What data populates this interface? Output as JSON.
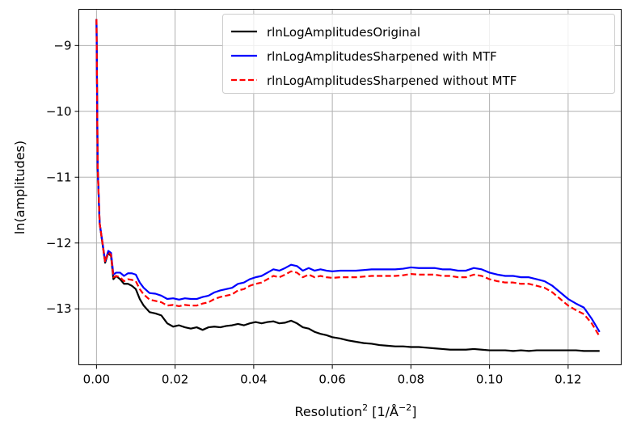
{
  "chart_data": {
    "type": "line",
    "xlabel_main": "Resolution",
    "xlabel_sup1": "2",
    "xlabel_mid": " [1/Å",
    "xlabel_sup2": "−2",
    "xlabel_end": "]",
    "ylabel": "ln(amplitudes)",
    "xlim": [
      -0.0045,
      0.1335
    ],
    "ylim": [
      -13.85,
      -8.45
    ],
    "grid": true,
    "legend_position": "top-right",
    "x_ticks": [
      {
        "value": 0.0,
        "label": "0.00"
      },
      {
        "value": 0.02,
        "label": "0.02"
      },
      {
        "value": 0.04,
        "label": "0.04"
      },
      {
        "value": 0.06,
        "label": "0.06"
      },
      {
        "value": 0.08,
        "label": "0.08"
      },
      {
        "value": 0.1,
        "label": "0.10"
      },
      {
        "value": 0.12,
        "label": "0.12"
      }
    ],
    "y_ticks": [
      {
        "value": -9,
        "label": "−9"
      },
      {
        "value": -10,
        "label": "−10"
      },
      {
        "value": -11,
        "label": "−11"
      },
      {
        "value": -12,
        "label": "−12"
      },
      {
        "value": -13,
        "label": "−13"
      }
    ],
    "series": [
      {
        "name": "rlnLogAmplitudesOriginal",
        "color": "#000000",
        "dash": "solid",
        "points": [
          [
            0.0,
            -8.6
          ],
          [
            0.0003,
            -10.85
          ],
          [
            0.0008,
            -11.7
          ],
          [
            0.0015,
            -12.0
          ],
          [
            0.0022,
            -12.3
          ],
          [
            0.003,
            -12.15
          ],
          [
            0.0037,
            -12.2
          ],
          [
            0.0043,
            -12.55
          ],
          [
            0.005,
            -12.5
          ],
          [
            0.006,
            -12.55
          ],
          [
            0.007,
            -12.62
          ],
          [
            0.008,
            -12.62
          ],
          [
            0.009,
            -12.65
          ],
          [
            0.01,
            -12.7
          ],
          [
            0.011,
            -12.85
          ],
          [
            0.012,
            -12.95
          ],
          [
            0.0135,
            -13.05
          ],
          [
            0.015,
            -13.07
          ],
          [
            0.0165,
            -13.1
          ],
          [
            0.018,
            -13.22
          ],
          [
            0.0195,
            -13.27
          ],
          [
            0.021,
            -13.25
          ],
          [
            0.0225,
            -13.28
          ],
          [
            0.024,
            -13.3
          ],
          [
            0.0255,
            -13.28
          ],
          [
            0.027,
            -13.32
          ],
          [
            0.0285,
            -13.28
          ],
          [
            0.03,
            -13.27
          ],
          [
            0.0315,
            -13.28
          ],
          [
            0.033,
            -13.26
          ],
          [
            0.0345,
            -13.25
          ],
          [
            0.036,
            -13.23
          ],
          [
            0.0375,
            -13.25
          ],
          [
            0.039,
            -13.22
          ],
          [
            0.0405,
            -13.2
          ],
          [
            0.042,
            -13.22
          ],
          [
            0.0435,
            -13.2
          ],
          [
            0.045,
            -13.19
          ],
          [
            0.0465,
            -13.22
          ],
          [
            0.048,
            -13.21
          ],
          [
            0.0495,
            -13.18
          ],
          [
            0.051,
            -13.22
          ],
          [
            0.0525,
            -13.28
          ],
          [
            0.054,
            -13.3
          ],
          [
            0.0555,
            -13.35
          ],
          [
            0.057,
            -13.38
          ],
          [
            0.0585,
            -13.4
          ],
          [
            0.06,
            -13.43
          ],
          [
            0.062,
            -13.45
          ],
          [
            0.064,
            -13.48
          ],
          [
            0.066,
            -13.5
          ],
          [
            0.068,
            -13.52
          ],
          [
            0.07,
            -13.53
          ],
          [
            0.072,
            -13.55
          ],
          [
            0.074,
            -13.56
          ],
          [
            0.076,
            -13.57
          ],
          [
            0.078,
            -13.57
          ],
          [
            0.08,
            -13.58
          ],
          [
            0.082,
            -13.58
          ],
          [
            0.084,
            -13.59
          ],
          [
            0.086,
            -13.6
          ],
          [
            0.088,
            -13.61
          ],
          [
            0.09,
            -13.62
          ],
          [
            0.092,
            -13.62
          ],
          [
            0.094,
            -13.62
          ],
          [
            0.096,
            -13.61
          ],
          [
            0.098,
            -13.62
          ],
          [
            0.1,
            -13.63
          ],
          [
            0.102,
            -13.63
          ],
          [
            0.104,
            -13.63
          ],
          [
            0.106,
            -13.64
          ],
          [
            0.108,
            -13.63
          ],
          [
            0.11,
            -13.64
          ],
          [
            0.112,
            -13.63
          ],
          [
            0.114,
            -13.63
          ],
          [
            0.116,
            -13.63
          ],
          [
            0.118,
            -13.63
          ],
          [
            0.12,
            -13.63
          ],
          [
            0.122,
            -13.63
          ],
          [
            0.124,
            -13.64
          ],
          [
            0.126,
            -13.64
          ],
          [
            0.128,
            -13.64
          ]
        ]
      },
      {
        "name": "rlnLogAmplitudesSharpened with MTF",
        "color": "#0000ff",
        "dash": "solid",
        "points": [
          [
            0.0,
            -8.6
          ],
          [
            0.0003,
            -10.85
          ],
          [
            0.0008,
            -11.7
          ],
          [
            0.0015,
            -11.98
          ],
          [
            0.0022,
            -12.28
          ],
          [
            0.003,
            -12.12
          ],
          [
            0.0037,
            -12.15
          ],
          [
            0.0043,
            -12.48
          ],
          [
            0.005,
            -12.45
          ],
          [
            0.006,
            -12.45
          ],
          [
            0.007,
            -12.5
          ],
          [
            0.008,
            -12.46
          ],
          [
            0.009,
            -12.46
          ],
          [
            0.01,
            -12.48
          ],
          [
            0.011,
            -12.6
          ],
          [
            0.012,
            -12.68
          ],
          [
            0.0135,
            -12.76
          ],
          [
            0.015,
            -12.77
          ],
          [
            0.0165,
            -12.8
          ],
          [
            0.018,
            -12.85
          ],
          [
            0.0195,
            -12.84
          ],
          [
            0.021,
            -12.86
          ],
          [
            0.0225,
            -12.84
          ],
          [
            0.024,
            -12.85
          ],
          [
            0.0255,
            -12.85
          ],
          [
            0.027,
            -12.82
          ],
          [
            0.0285,
            -12.8
          ],
          [
            0.03,
            -12.75
          ],
          [
            0.0315,
            -12.72
          ],
          [
            0.033,
            -12.7
          ],
          [
            0.0345,
            -12.68
          ],
          [
            0.036,
            -12.62
          ],
          [
            0.0375,
            -12.6
          ],
          [
            0.039,
            -12.55
          ],
          [
            0.0405,
            -12.52
          ],
          [
            0.042,
            -12.5
          ],
          [
            0.0435,
            -12.45
          ],
          [
            0.045,
            -12.4
          ],
          [
            0.0465,
            -12.42
          ],
          [
            0.048,
            -12.38
          ],
          [
            0.0495,
            -12.33
          ],
          [
            0.051,
            -12.35
          ],
          [
            0.0525,
            -12.42
          ],
          [
            0.054,
            -12.38
          ],
          [
            0.0555,
            -12.42
          ],
          [
            0.057,
            -12.4
          ],
          [
            0.0585,
            -12.42
          ],
          [
            0.06,
            -12.43
          ],
          [
            0.062,
            -12.42
          ],
          [
            0.064,
            -12.42
          ],
          [
            0.066,
            -12.42
          ],
          [
            0.068,
            -12.41
          ],
          [
            0.07,
            -12.4
          ],
          [
            0.072,
            -12.4
          ],
          [
            0.074,
            -12.4
          ],
          [
            0.076,
            -12.4
          ],
          [
            0.078,
            -12.39
          ],
          [
            0.08,
            -12.37
          ],
          [
            0.082,
            -12.38
          ],
          [
            0.084,
            -12.38
          ],
          [
            0.086,
            -12.38
          ],
          [
            0.088,
            -12.4
          ],
          [
            0.09,
            -12.4
          ],
          [
            0.092,
            -12.42
          ],
          [
            0.094,
            -12.42
          ],
          [
            0.096,
            -12.38
          ],
          [
            0.098,
            -12.4
          ],
          [
            0.1,
            -12.45
          ],
          [
            0.102,
            -12.48
          ],
          [
            0.104,
            -12.5
          ],
          [
            0.106,
            -12.5
          ],
          [
            0.108,
            -12.52
          ],
          [
            0.11,
            -12.52
          ],
          [
            0.112,
            -12.55
          ],
          [
            0.114,
            -12.58
          ],
          [
            0.116,
            -12.65
          ],
          [
            0.118,
            -12.75
          ],
          [
            0.12,
            -12.85
          ],
          [
            0.122,
            -12.92
          ],
          [
            0.124,
            -12.98
          ],
          [
            0.126,
            -13.15
          ],
          [
            0.128,
            -13.35
          ]
        ]
      },
      {
        "name": "rlnLogAmplitudesSharpened without MTF",
        "color": "#ff0000",
        "dash": "dashed",
        "points": [
          [
            0.0,
            -8.6
          ],
          [
            0.0003,
            -10.85
          ],
          [
            0.0008,
            -11.7
          ],
          [
            0.0015,
            -11.99
          ],
          [
            0.0022,
            -12.29
          ],
          [
            0.003,
            -12.14
          ],
          [
            0.0037,
            -12.18
          ],
          [
            0.0043,
            -12.52
          ],
          [
            0.005,
            -12.5
          ],
          [
            0.006,
            -12.52
          ],
          [
            0.007,
            -12.58
          ],
          [
            0.008,
            -12.55
          ],
          [
            0.009,
            -12.56
          ],
          [
            0.01,
            -12.58
          ],
          [
            0.011,
            -12.7
          ],
          [
            0.012,
            -12.78
          ],
          [
            0.0135,
            -12.86
          ],
          [
            0.015,
            -12.88
          ],
          [
            0.0165,
            -12.9
          ],
          [
            0.018,
            -12.95
          ],
          [
            0.0195,
            -12.94
          ],
          [
            0.021,
            -12.96
          ],
          [
            0.0225,
            -12.94
          ],
          [
            0.024,
            -12.95
          ],
          [
            0.0255,
            -12.95
          ],
          [
            0.027,
            -12.92
          ],
          [
            0.0285,
            -12.9
          ],
          [
            0.03,
            -12.85
          ],
          [
            0.0315,
            -12.82
          ],
          [
            0.033,
            -12.8
          ],
          [
            0.0345,
            -12.78
          ],
          [
            0.036,
            -12.72
          ],
          [
            0.0375,
            -12.7
          ],
          [
            0.039,
            -12.65
          ],
          [
            0.0405,
            -12.62
          ],
          [
            0.042,
            -12.6
          ],
          [
            0.0435,
            -12.55
          ],
          [
            0.045,
            -12.5
          ],
          [
            0.0465,
            -12.52
          ],
          [
            0.048,
            -12.48
          ],
          [
            0.0495,
            -12.43
          ],
          [
            0.051,
            -12.45
          ],
          [
            0.0525,
            -12.52
          ],
          [
            0.054,
            -12.48
          ],
          [
            0.0555,
            -12.52
          ],
          [
            0.057,
            -12.5
          ],
          [
            0.0585,
            -12.52
          ],
          [
            0.06,
            -12.53
          ],
          [
            0.062,
            -12.52
          ],
          [
            0.064,
            -12.52
          ],
          [
            0.066,
            -12.52
          ],
          [
            0.068,
            -12.51
          ],
          [
            0.07,
            -12.5
          ],
          [
            0.072,
            -12.5
          ],
          [
            0.074,
            -12.5
          ],
          [
            0.076,
            -12.5
          ],
          [
            0.078,
            -12.49
          ],
          [
            0.08,
            -12.47
          ],
          [
            0.082,
            -12.48
          ],
          [
            0.084,
            -12.48
          ],
          [
            0.086,
            -12.48
          ],
          [
            0.088,
            -12.5
          ],
          [
            0.09,
            -12.5
          ],
          [
            0.092,
            -12.52
          ],
          [
            0.094,
            -12.52
          ],
          [
            0.096,
            -12.48
          ],
          [
            0.098,
            -12.5
          ],
          [
            0.1,
            -12.55
          ],
          [
            0.102,
            -12.58
          ],
          [
            0.104,
            -12.6
          ],
          [
            0.106,
            -12.6
          ],
          [
            0.108,
            -12.62
          ],
          [
            0.11,
            -12.62
          ],
          [
            0.112,
            -12.65
          ],
          [
            0.114,
            -12.68
          ],
          [
            0.116,
            -12.75
          ],
          [
            0.118,
            -12.85
          ],
          [
            0.12,
            -12.95
          ],
          [
            0.122,
            -13.02
          ],
          [
            0.124,
            -13.08
          ],
          [
            0.126,
            -13.22
          ],
          [
            0.128,
            -13.42
          ]
        ]
      }
    ]
  }
}
